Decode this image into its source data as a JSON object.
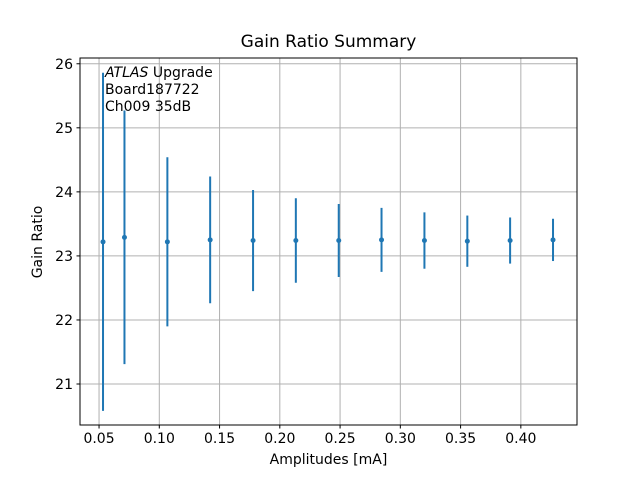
{
  "chart_data": {
    "type": "scatter",
    "title": "Gain Ratio Summary",
    "xlabel": "Amplitudes [mA]",
    "ylabel": "Gain Ratio",
    "xlim": [
      0.0342,
      0.4466
    ],
    "ylim": [
      20.36,
      26.09
    ],
    "grid": true,
    "legend": false,
    "xticks": {
      "values": [
        0.05,
        0.1,
        0.15,
        0.2,
        0.25,
        0.3,
        0.35,
        0.4
      ],
      "labels": [
        "0.05",
        "0.10",
        "0.15",
        "0.20",
        "0.25",
        "0.30",
        "0.35",
        "0.40"
      ]
    },
    "yticks": {
      "values": [
        21,
        22,
        23,
        24,
        25,
        26
      ],
      "labels": [
        "21",
        "22",
        "23",
        "24",
        "25",
        "26"
      ]
    },
    "series": [
      {
        "name": "gain-ratio-errorbar",
        "marker": "point",
        "color": "#1f77b4",
        "x": [
          0.0533,
          0.0711,
          0.1067,
          0.1422,
          0.1778,
          0.2133,
          0.2489,
          0.2844,
          0.32,
          0.3556,
          0.3911,
          0.4267
        ],
        "y": [
          23.22,
          23.29,
          23.22,
          23.25,
          23.24,
          23.24,
          23.24,
          23.25,
          23.24,
          23.23,
          23.24,
          23.25
        ],
        "yerr": [
          2.64,
          1.98,
          1.32,
          0.99,
          0.79,
          0.66,
          0.57,
          0.5,
          0.44,
          0.4,
          0.36,
          0.33
        ]
      }
    ],
    "annotation": {
      "line1_italic": "ATLAS",
      "line1_rest": " Upgrade",
      "line2": "Board187722",
      "line3": "Ch009 35dB"
    },
    "colors": {
      "errorbar": "#1f77b4",
      "grid": "#b0b0b0",
      "axes": "#000000",
      "background": "#ffffff",
      "text": "#000000"
    }
  }
}
